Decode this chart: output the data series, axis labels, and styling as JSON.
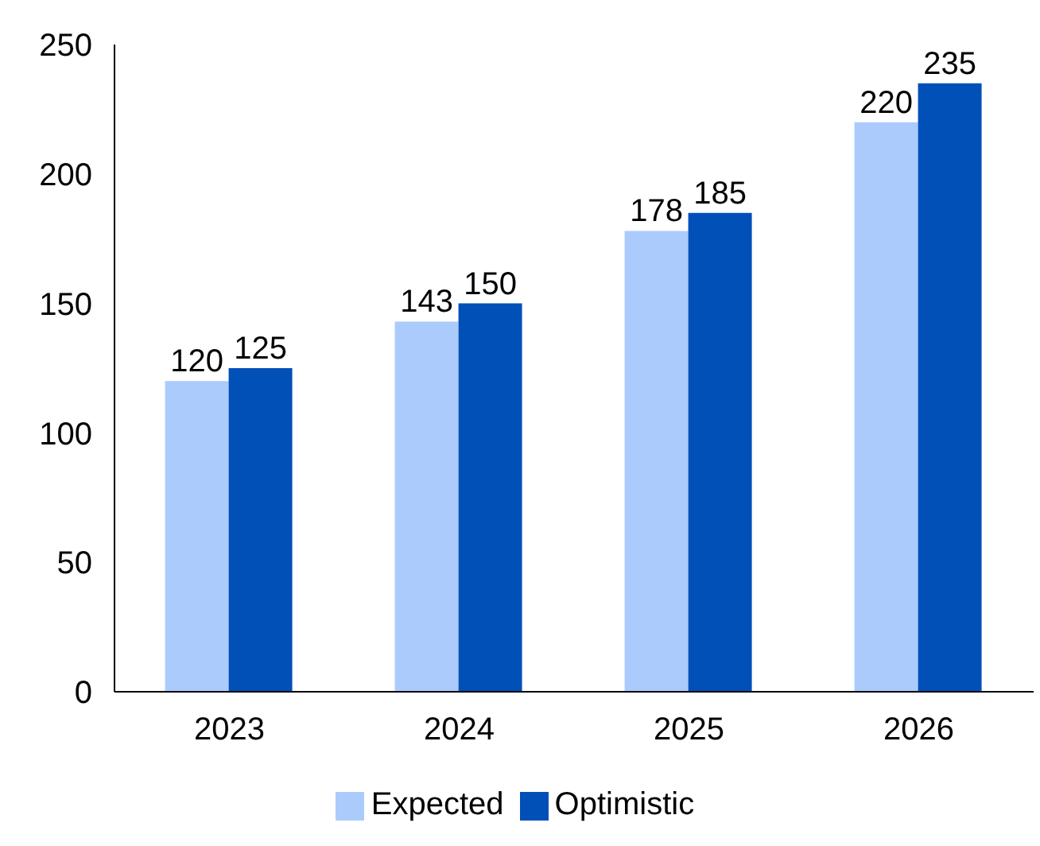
{
  "chart_data": {
    "type": "bar",
    "categories": [
      "2023",
      "2024",
      "2025",
      "2026"
    ],
    "series": [
      {
        "name": "Expected",
        "color": "#abcbfd",
        "values": [
          120,
          143,
          178,
          220
        ]
      },
      {
        "name": "Optimistic",
        "color": "#0050b8",
        "values": [
          125,
          150,
          185,
          235
        ]
      }
    ],
    "ylim": [
      0,
      250
    ],
    "yticks": [
      0,
      50,
      100,
      150,
      200,
      250
    ],
    "grid": false,
    "legend": "bottom",
    "data_labels": true
  }
}
